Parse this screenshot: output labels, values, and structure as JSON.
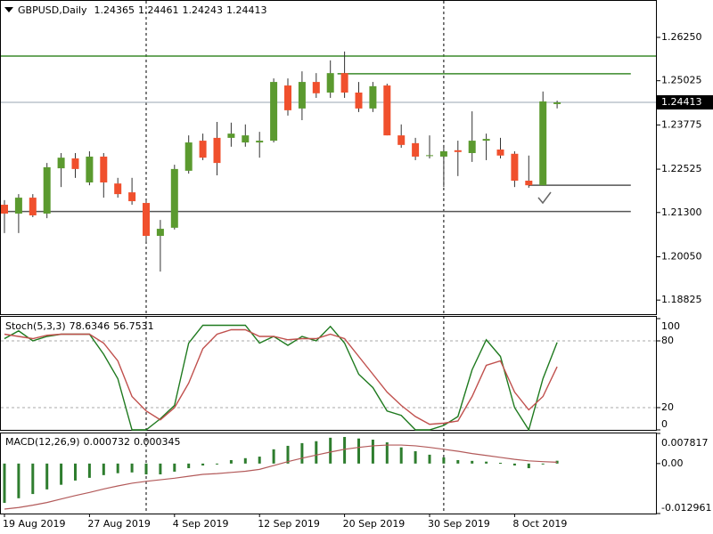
{
  "chart_data": [
    {
      "type": "candlestick",
      "title": "GBPUSD,Daily",
      "categories": [
        "19 Aug 2019",
        null,
        null,
        null,
        null,
        null,
        "27 Aug 2019",
        null,
        null,
        null,
        null,
        null,
        "4 Sep 2019",
        null,
        null,
        null,
        null,
        null,
        "12 Sep 2019",
        null,
        null,
        null,
        null,
        null,
        "20 Sep 2019",
        null,
        null,
        null,
        null,
        null,
        "30 Sep 2019",
        null,
        null,
        null,
        null,
        null,
        "8 Oct 2019",
        null,
        null,
        null
      ],
      "open": [
        1.2152,
        1.2127,
        1.2172,
        1.2127,
        1.2255,
        1.2283,
        1.2215,
        1.2288,
        1.2212,
        1.2187,
        1.2157,
        1.2064,
        1.2087,
        1.2248,
        1.2333,
        1.2341,
        1.2341,
        1.2328,
        1.2328,
        1.2333,
        1.2489,
        1.2424,
        1.2499,
        1.2469,
        1.2524,
        1.2469,
        1.2424,
        1.2489,
        1.2348,
        1.2326,
        1.229,
        1.2288,
        1.2306,
        1.2298,
        1.2333,
        1.2308,
        1.2296,
        1.222,
        1.2207,
        1.24365
      ],
      "high": [
        1.2165,
        1.2182,
        1.2182,
        1.227,
        1.2298,
        1.2298,
        1.2303,
        1.2298,
        1.2228,
        1.2228,
        1.2165,
        1.2109,
        1.2265,
        1.2348,
        1.2353,
        1.2386,
        1.2384,
        1.2379,
        1.2358,
        1.2509,
        1.2509,
        1.2529,
        1.2524,
        1.256,
        1.2585,
        1.2499,
        1.2499,
        1.2494,
        1.2379,
        1.2341,
        1.2348,
        1.2321,
        1.2333,
        1.2416,
        1.2353,
        1.2341,
        1.2303,
        1.2291,
        1.2472,
        1.24461
      ],
      "low": [
        1.2072,
        1.2072,
        1.2117,
        1.2114,
        1.2202,
        1.2228,
        1.2207,
        1.2172,
        1.2172,
        1.2152,
        1.2047,
        1.1963,
        1.2082,
        1.224,
        1.2278,
        1.2235,
        1.2316,
        1.2316,
        1.2285,
        1.2328,
        1.2404,
        1.2391,
        1.2454,
        1.2454,
        1.2454,
        1.2414,
        1.2414,
        1.2348,
        1.2313,
        1.2278,
        1.2283,
        1.2202,
        1.2233,
        1.2273,
        1.2278,
        1.2283,
        1.2202,
        1.22,
        1.2207,
        1.24243
      ],
      "close": [
        1.2127,
        1.2172,
        1.2122,
        1.2258,
        1.2285,
        1.2253,
        1.2288,
        1.2215,
        1.2182,
        1.2162,
        1.2064,
        1.2084,
        1.2253,
        1.2328,
        1.2285,
        1.227,
        1.2353,
        1.2348,
        1.2333,
        1.2499,
        1.2419,
        1.2499,
        1.2467,
        1.2524,
        1.2469,
        1.2424,
        1.2487,
        1.2348,
        1.2321,
        1.2288,
        1.2292,
        1.2303,
        1.2301,
        1.2333,
        1.2338,
        1.2291,
        1.222,
        1.2207,
        1.2444,
        1.24413
      ],
      "up_color": "#5b9a2f",
      "down_color": "#f0502d",
      "ylim": [
        1.18427,
        1.27281
      ],
      "yticks": [
        {
          "value": 1.2625,
          "label": "1.26250"
        },
        1.25025,
        1.23775,
        1.22525,
        {
          "value": 1.213,
          "label": "1.21300"
        },
        {
          "value": 1.2005,
          "label": "1.20050"
        },
        1.18825
      ],
      "hlines": [
        {
          "value": 1.2572,
          "color": "#3a8a2a",
          "from": -1,
          "to": 46
        },
        {
          "value": 1.2522,
          "color": "#3a8a2a",
          "from": 23.5,
          "to": 44.2
        },
        {
          "value": 1.2207,
          "color": "#555555",
          "from": 37,
          "to": 44.2
        },
        {
          "value": 1.2133,
          "color": "#555555",
          "from": -1,
          "to": 44.2
        }
      ],
      "separators": [
        10,
        31
      ]
    },
    {
      "type": "line",
      "title": "Stoch(5,3,3)",
      "series": [
        {
          "color": "#1f7a1f",
          "values": [
            82,
            89,
            80,
            84,
            86,
            86,
            86,
            68,
            46,
            0,
            0,
            10,
            22,
            78,
            94,
            94,
            94,
            94,
            78,
            84,
            76,
            84,
            80,
            93,
            78,
            50,
            38,
            17,
            13,
            0,
            0,
            4,
            12,
            54,
            81,
            66,
            20,
            0,
            46,
            78.6346
          ]
        },
        {
          "color": "#c0504d",
          "values": [
            86,
            84,
            82,
            85,
            86,
            86,
            86,
            78,
            62,
            30,
            17,
            9,
            20,
            42,
            73,
            86,
            90,
            90,
            84,
            84,
            81,
            82,
            82,
            86,
            82,
            66,
            50,
            34,
            22,
            12,
            5,
            6,
            8,
            30,
            58,
            62,
            34,
            18,
            30,
            56.7531
          ]
        }
      ],
      "ylim": [
        0,
        101.6
      ],
      "yticks": [
        0,
        20,
        80,
        100
      ],
      "levels": [
        20,
        80
      ]
    },
    {
      "type": "macd",
      "title": "MACD(12,26,9)",
      "series": [
        {
          "color": "#2e7d2e",
          "values": [
            -0.0102,
            -0.009,
            -0.0079,
            -0.0067,
            -0.0055,
            -0.0044,
            -0.0037,
            -0.003,
            -0.0025,
            -0.0023,
            -0.0028,
            -0.0028,
            -0.0021,
            -0.0012,
            -0.0005,
            -0.0002,
            0.0009,
            0.0014,
            0.0018,
            0.0037,
            0.0046,
            0.0053,
            0.0058,
            0.0067,
            0.0069,
            0.0065,
            0.0062,
            0.0055,
            0.0042,
            0.0032,
            0.0023,
            0.0016,
            0.0009,
            0.0007,
            0.0005,
            0.0002,
            -0.0005,
            -0.0012,
            -0.0002,
            0.000732
          ]
        },
        {
          "color": "#b35a5a",
          "values": [
            -0.0118,
            -0.0114,
            -0.0108,
            -0.0101,
            -0.0092,
            -0.0083,
            -0.0075,
            -0.0066,
            -0.0058,
            -0.0051,
            -0.0046,
            -0.0042,
            -0.0038,
            -0.0033,
            -0.0028,
            -0.0026,
            -0.0023,
            -0.002,
            -0.0015,
            -0.0005,
            0.0005,
            0.0014,
            0.0022,
            0.003,
            0.0037,
            0.0042,
            0.0046,
            0.0048,
            0.0048,
            0.0046,
            0.0042,
            0.0037,
            0.0032,
            0.0026,
            0.0021,
            0.0016,
            0.0011,
            0.0007,
            0.0005,
            0.000345
          ]
        }
      ],
      "ylim": [
        -0.012961,
        0.007817
      ],
      "yticks": [
        0.007817,
        {
          "value": 0,
          "label": "0.00"
        },
        -0.012961
      ]
    }
  ]
}
